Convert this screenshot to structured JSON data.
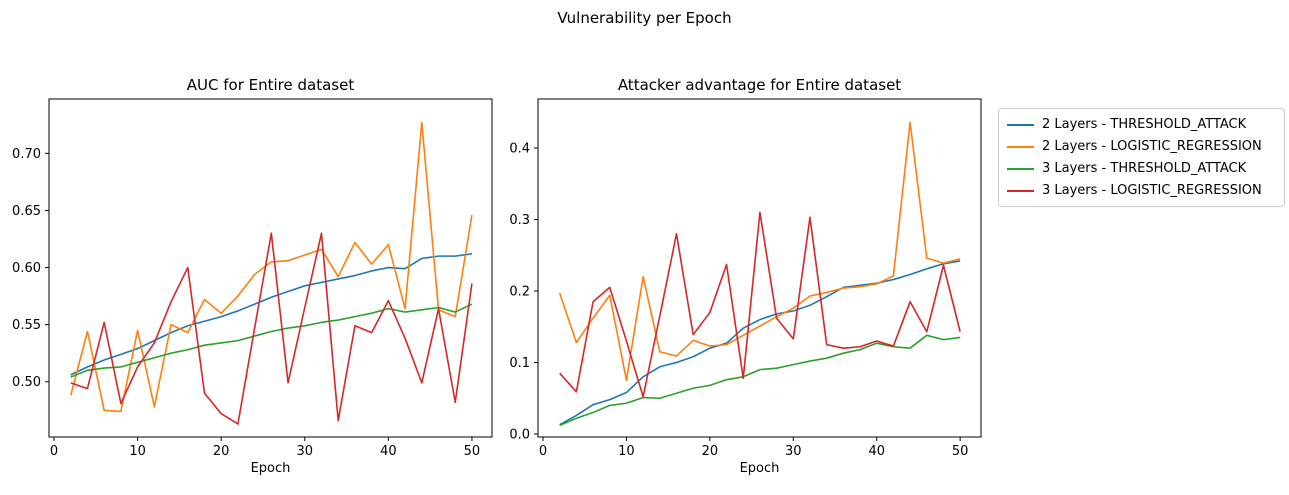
{
  "figure": {
    "suptitle": "Vulnerability per Epoch"
  },
  "legend": {
    "position": "outside-upper-right"
  },
  "chart_data": [
    {
      "type": "line",
      "title": "AUC for Entire dataset",
      "xlabel": "Epoch",
      "ylabel": "",
      "grid": false,
      "xlim": [
        -0.6,
        52.4
      ],
      "ylim": [
        0.4516,
        0.7476
      ],
      "xticks": [
        0,
        10,
        20,
        30,
        40,
        50
      ],
      "xtick_labels": [
        "0",
        "10",
        "20",
        "30",
        "40",
        "50"
      ],
      "yticks": [
        0.5,
        0.55,
        0.6,
        0.65,
        0.7
      ],
      "ytick_labels": [
        "0.50",
        "0.55",
        "0.60",
        "0.65",
        "0.70"
      ],
      "x": [
        2,
        4,
        6,
        8,
        10,
        12,
        14,
        16,
        18,
        20,
        22,
        24,
        26,
        28,
        30,
        32,
        34,
        36,
        38,
        40,
        42,
        44,
        46,
        48,
        50
      ],
      "series": [
        {
          "name": "2 Layers - THRESHOLD_ATTACK",
          "color": "#1f77b4",
          "values": [
            0.506,
            0.513,
            0.519,
            0.524,
            0.529,
            0.536,
            0.543,
            0.549,
            0.553,
            0.557,
            0.562,
            0.568,
            0.574,
            0.579,
            0.584,
            0.587,
            0.59,
            0.593,
            0.597,
            0.6,
            0.599,
            0.608,
            0.61,
            0.61,
            0.612
          ]
        },
        {
          "name": "2 Layers - LOGISTIC_REGRESSION",
          "color": "#ff7f0e",
          "values": [
            0.488,
            0.544,
            0.475,
            0.474,
            0.545,
            0.478,
            0.55,
            0.543,
            0.572,
            0.56,
            0.575,
            0.594,
            0.605,
            0.606,
            0.611,
            0.616,
            0.592,
            0.622,
            0.603,
            0.62,
            0.564,
            0.727,
            0.563,
            0.557,
            0.646
          ]
        },
        {
          "name": "3 Layers - THRESHOLD_ATTACK",
          "color": "#2ca02c",
          "values": [
            0.504,
            0.51,
            0.512,
            0.513,
            0.517,
            0.521,
            0.525,
            0.528,
            0.532,
            0.534,
            0.536,
            0.54,
            0.544,
            0.547,
            0.549,
            0.552,
            0.554,
            0.557,
            0.56,
            0.564,
            0.561,
            0.563,
            0.565,
            0.561,
            0.568
          ]
        },
        {
          "name": "3 Layers - LOGISTIC_REGRESSION",
          "color": "#d62728",
          "values": [
            0.499,
            0.494,
            0.552,
            0.481,
            0.513,
            0.534,
            0.57,
            0.6,
            0.49,
            0.472,
            0.463,
            0.547,
            0.63,
            0.499,
            0.565,
            0.63,
            0.466,
            0.549,
            0.543,
            0.571,
            0.538,
            0.499,
            0.564,
            0.482,
            0.586
          ]
        }
      ]
    },
    {
      "type": "line",
      "title": "Attacker advantage for Entire dataset",
      "xlabel": "Epoch",
      "ylabel": "",
      "grid": false,
      "xlim": [
        -0.6,
        52.5
      ],
      "ylim": [
        -0.0042,
        0.4685
      ],
      "xticks": [
        0,
        10,
        20,
        30,
        40,
        50
      ],
      "xtick_labels": [
        "0",
        "10",
        "20",
        "30",
        "40",
        "50"
      ],
      "yticks": [
        0.0,
        0.1,
        0.2,
        0.3,
        0.4
      ],
      "ytick_labels": [
        "0.0",
        "0.1",
        "0.2",
        "0.3",
        "0.4"
      ],
      "x": [
        2,
        4,
        6,
        8,
        10,
        12,
        14,
        16,
        18,
        20,
        22,
        24,
        26,
        28,
        30,
        32,
        34,
        36,
        38,
        40,
        42,
        44,
        46,
        48,
        50
      ],
      "series": [
        {
          "name": "2 Layers - THRESHOLD_ATTACK",
          "color": "#1f77b4",
          "values": [
            0.013,
            0.026,
            0.041,
            0.048,
            0.058,
            0.08,
            0.094,
            0.1,
            0.108,
            0.12,
            0.127,
            0.148,
            0.16,
            0.168,
            0.172,
            0.18,
            0.192,
            0.205,
            0.208,
            0.211,
            0.216,
            0.223,
            0.231,
            0.238,
            0.242
          ]
        },
        {
          "name": "2 Layers - LOGISTIC_REGRESSION",
          "color": "#ff7f0e",
          "values": [
            0.197,
            0.128,
            0.162,
            0.194,
            0.075,
            0.22,
            0.115,
            0.109,
            0.131,
            0.123,
            0.125,
            0.138,
            0.151,
            0.164,
            0.176,
            0.193,
            0.198,
            0.204,
            0.206,
            0.21,
            0.221,
            0.436,
            0.246,
            0.239,
            0.245
          ]
        },
        {
          "name": "3 Layers - THRESHOLD_ATTACK",
          "color": "#2ca02c",
          "values": [
            0.012,
            0.022,
            0.03,
            0.04,
            0.043,
            0.051,
            0.05,
            0.057,
            0.064,
            0.068,
            0.076,
            0.08,
            0.09,
            0.092,
            0.097,
            0.102,
            0.106,
            0.113,
            0.118,
            0.127,
            0.122,
            0.12,
            0.138,
            0.132,
            0.135
          ]
        },
        {
          "name": "3 Layers - LOGISTIC_REGRESSION",
          "color": "#d62728",
          "values": [
            0.085,
            0.059,
            0.185,
            0.205,
            0.13,
            0.052,
            0.165,
            0.28,
            0.139,
            0.17,
            0.237,
            0.078,
            0.31,
            0.162,
            0.133,
            0.303,
            0.125,
            0.12,
            0.122,
            0.13,
            0.123,
            0.185,
            0.143,
            0.236,
            0.143
          ]
        }
      ]
    }
  ]
}
